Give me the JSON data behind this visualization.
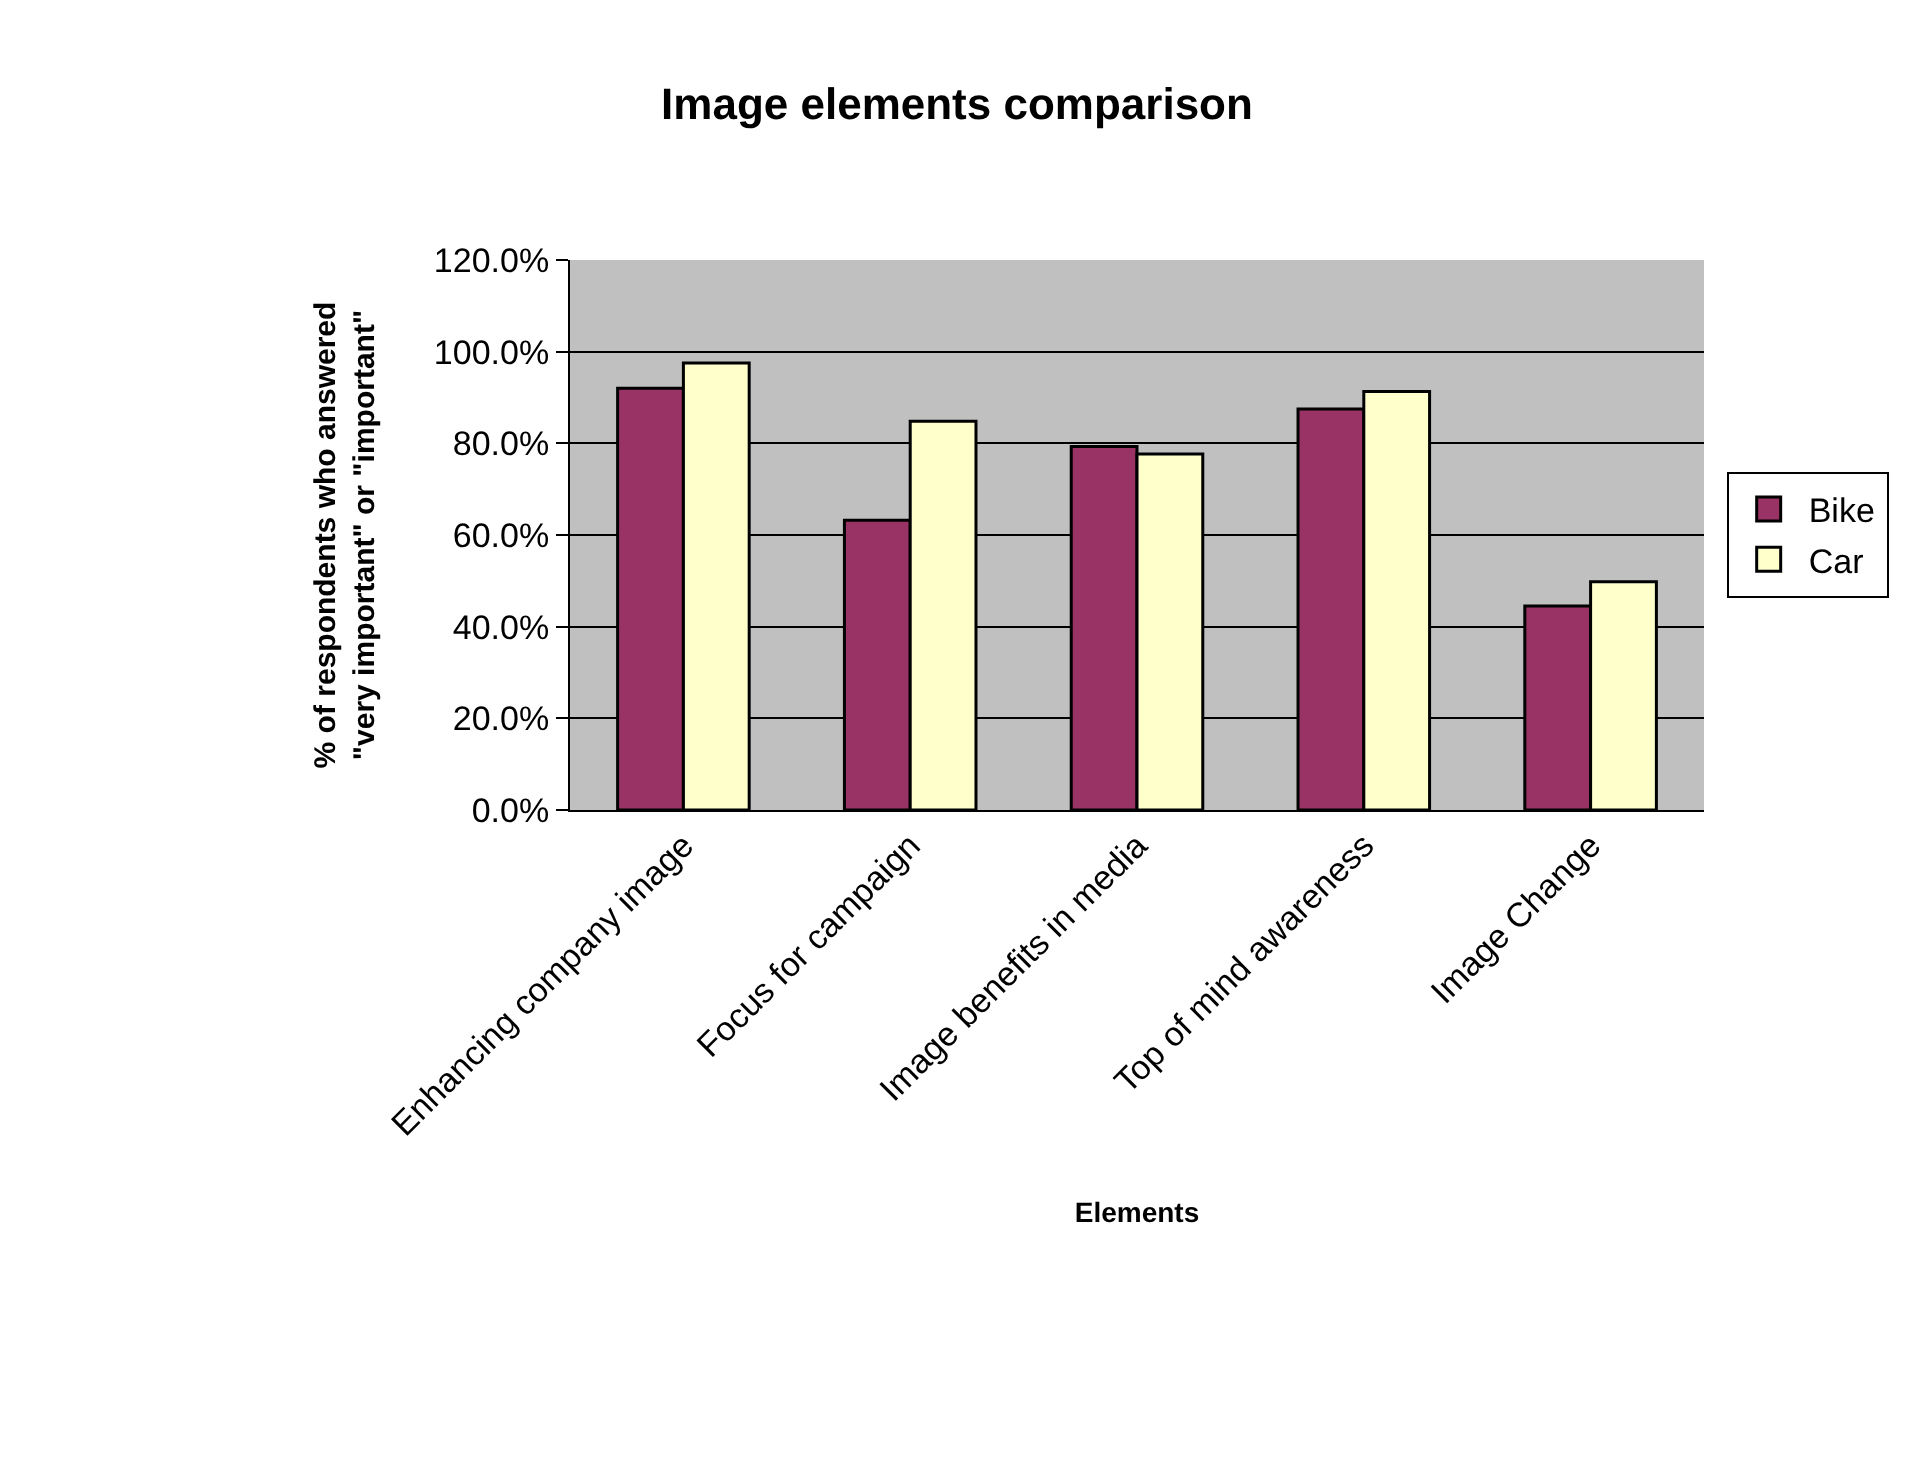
{
  "chart_data": {
    "type": "bar",
    "title": "Image elements comparison",
    "xlabel": "Elements",
    "ylabel": "% of respondents who answered \"very important\" or \"important\"",
    "categories": [
      "Enhancing company image",
      "Focus for campaign",
      "Image benefits in media",
      "Top of mind awareness",
      "Image Change"
    ],
    "series": [
      {
        "name": "Bike",
        "color": "#993366",
        "values": [
          92.0,
          63.2,
          79.3,
          87.5,
          44.5
        ]
      },
      {
        "name": "Car",
        "color": "#ffffcc",
        "values": [
          97.5,
          84.8,
          77.7,
          91.3,
          49.8
        ]
      }
    ],
    "ylim": [
      0,
      120
    ],
    "yticks": [
      {
        "value": 0,
        "label": "0.0%"
      },
      {
        "value": 20,
        "label": "20.0%"
      },
      {
        "value": 40,
        "label": "40.0%"
      },
      {
        "value": 60,
        "label": "60.0%"
      },
      {
        "value": 80,
        "label": "80.0%"
      },
      {
        "value": 100,
        "label": "100.0%"
      },
      {
        "value": 120,
        "label": "120.0%"
      }
    ],
    "grid": "y",
    "legend": "right"
  }
}
